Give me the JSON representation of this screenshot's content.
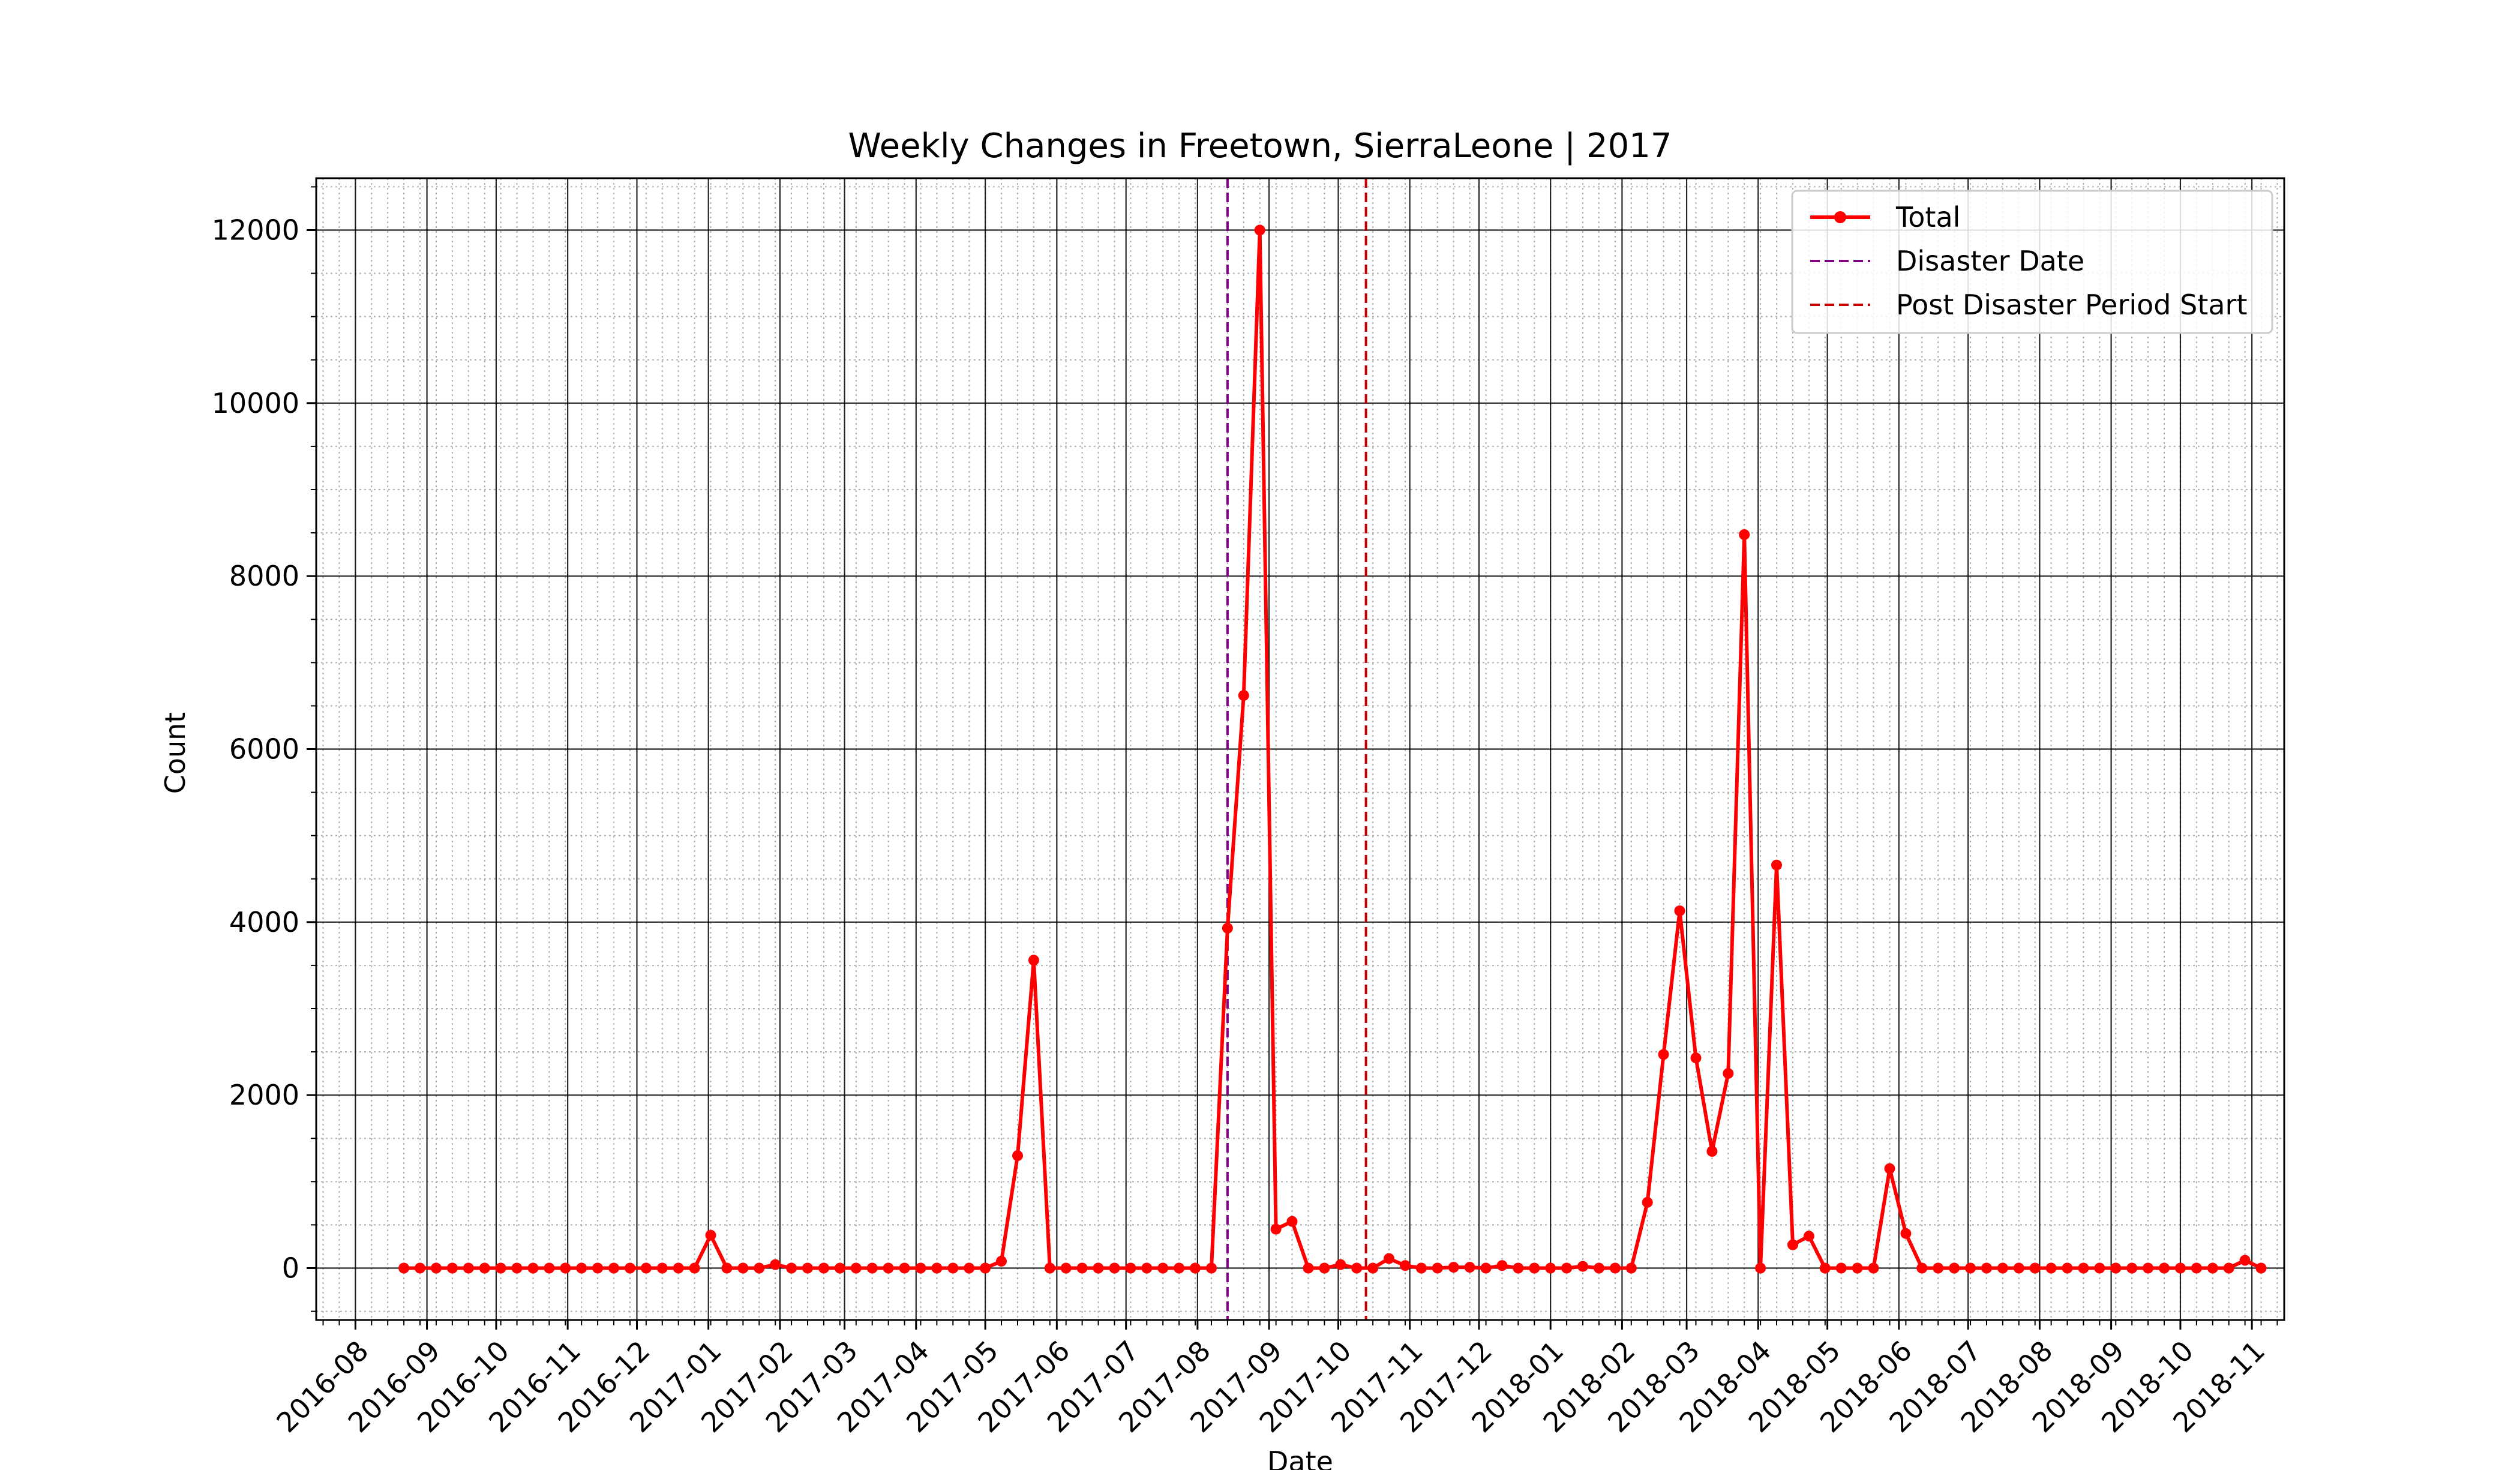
{
  "chart_data": {
    "type": "line",
    "title": "Weekly Changes in Freetown, SierraLeone | 2017",
    "xlabel": "Date",
    "ylabel": "Count",
    "x_start": "2016-08-22",
    "x_interval": "weekly",
    "xlim": [
      "2016-07-15",
      "2018-11-15"
    ],
    "ylim": [
      -600,
      12600
    ],
    "y_ticks": [
      0,
      2000,
      4000,
      6000,
      8000,
      10000,
      12000
    ],
    "y_tick_labels": [
      "0",
      "2000",
      "4000",
      "6000",
      "8000",
      "10000",
      "12000"
    ],
    "x_tick_dates": [
      "2016-08-01",
      "2016-09-01",
      "2016-10-01",
      "2016-11-01",
      "2016-12-01",
      "2017-01-01",
      "2017-02-01",
      "2017-03-01",
      "2017-04-01",
      "2017-05-01",
      "2017-06-01",
      "2017-07-01",
      "2017-08-01",
      "2017-09-01",
      "2017-10-01",
      "2017-11-01",
      "2017-12-01",
      "2018-01-01",
      "2018-02-01",
      "2018-03-01",
      "2018-04-01",
      "2018-05-01",
      "2018-06-01",
      "2018-07-01",
      "2018-08-01",
      "2018-09-01",
      "2018-10-01",
      "2018-11-01"
    ],
    "x_tick_labels": [
      "2016-08",
      "2016-09",
      "2016-10",
      "2016-11",
      "2016-12",
      "2017-01",
      "2017-02",
      "2017-03",
      "2017-04",
      "2017-05",
      "2017-06",
      "2017-07",
      "2017-08",
      "2017-09",
      "2017-10",
      "2017-11",
      "2017-12",
      "2018-01",
      "2018-02",
      "2018-03",
      "2018-04",
      "2018-05",
      "2018-06",
      "2018-07",
      "2018-08",
      "2018-09",
      "2018-10",
      "2018-11"
    ],
    "grid": true,
    "legend_position": "top-right",
    "series": [
      {
        "name": "Total",
        "color": "#ff0000",
        "values": [
          0,
          0,
          0,
          0,
          0,
          0,
          0,
          0,
          0,
          0,
          0,
          0,
          0,
          0,
          0,
          0,
          0,
          0,
          0,
          380,
          0,
          0,
          0,
          40,
          0,
          0,
          0,
          0,
          0,
          0,
          0,
          0,
          0,
          0,
          0,
          0,
          0,
          80,
          1300,
          3560,
          0,
          0,
          0,
          0,
          0,
          0,
          0,
          0,
          0,
          0,
          0,
          3930,
          6620,
          12000,
          450,
          540,
          0,
          0,
          40,
          0,
          0,
          110,
          30,
          0,
          0,
          10,
          10,
          0,
          30,
          0,
          0,
          0,
          0,
          20,
          0,
          0,
          0,
          760,
          2470,
          4130,
          2430,
          1350,
          2250,
          8480,
          0,
          4660,
          270,
          370,
          0,
          0,
          0,
          0,
          1150,
          400,
          0,
          0,
          0,
          0,
          0,
          0,
          0,
          0,
          0,
          0,
          0,
          0,
          0,
          0,
          0,
          0,
          0,
          0,
          0,
          0,
          90,
          0
        ]
      }
    ],
    "vlines": [
      {
        "name": "Disaster Date",
        "date": "2017-08-14",
        "color": "#800080"
      },
      {
        "name": "Post Disaster Period Start",
        "date": "2017-10-13",
        "color": "#cc0000"
      }
    ]
  }
}
